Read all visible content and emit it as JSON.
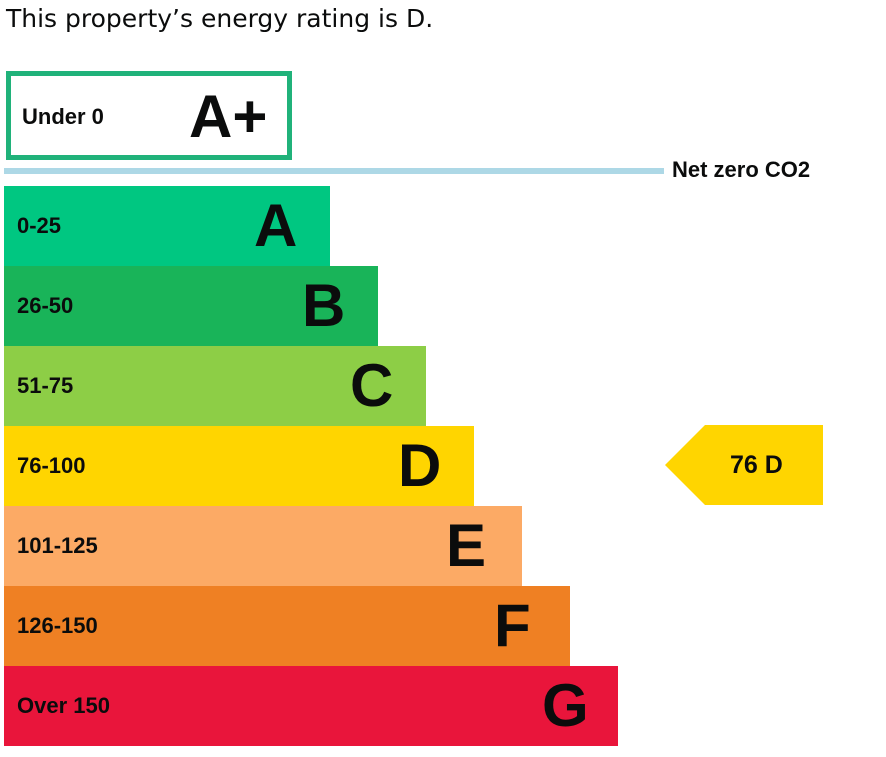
{
  "summary_text": "This property’s energy rating is D.",
  "chart_data": {
    "type": "bar",
    "aplus": {
      "range": "Under 0",
      "letter": "A+",
      "color": "#20b27a"
    },
    "net_zero_label": "Net zero CO2",
    "net_zero_line_color": "#add8e6",
    "bands": [
      {
        "letter": "A",
        "range": "0-25",
        "color": "#00c781"
      },
      {
        "letter": "B",
        "range": "26-50",
        "color": "#19b459"
      },
      {
        "letter": "C",
        "range": "51-75",
        "color": "#8dce46"
      },
      {
        "letter": "D",
        "range": "76-100",
        "color": "#ffd500"
      },
      {
        "letter": "E",
        "range": "101-125",
        "color": "#fcaa65"
      },
      {
        "letter": "F",
        "range": "126-150",
        "color": "#ef8023"
      },
      {
        "letter": "G",
        "range": "Over 150",
        "color": "#e9153b"
      }
    ],
    "current_rating": {
      "value": 76,
      "letter": "D",
      "label": "76  D",
      "color": "#ffd500"
    }
  }
}
